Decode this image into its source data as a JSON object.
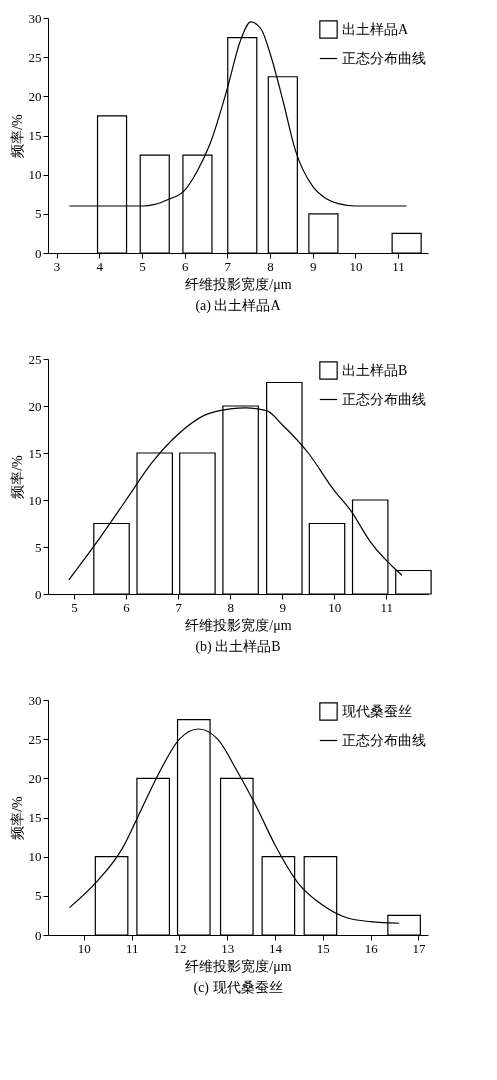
{
  "chart_data": [
    {
      "type": "bar",
      "xlabel": "纤维投影宽度/μm",
      "ylabel": "频率/%",
      "annotations": [
        "(a)  出土样品A"
      ],
      "xlim": [
        2.8,
        11.7
      ],
      "xticks": [
        3,
        4,
        5,
        6,
        7,
        8,
        9,
        10,
        11
      ],
      "ylim": [
        0,
        30
      ],
      "yticks": [
        0,
        5,
        10,
        15,
        20,
        25,
        30
      ],
      "legend": "top right",
      "grid": false,
      "series": [
        {
          "name": "出土样品A",
          "color": "#ffffff",
          "x": [
            4.3,
            5.3,
            6.3,
            7.35,
            8.3,
            9.25,
            11.2
          ],
          "values": [
            17.5,
            12.5,
            12.5,
            27.5,
            22.5,
            5,
            2.5
          ]
        },
        {
          "name": "正态分布曲线",
          "type": "line",
          "color": "#000000",
          "x": [
            3.3,
            4,
            4.5,
            5,
            5.3,
            5.6,
            6,
            6.3,
            6.6,
            7,
            7.3,
            7.55,
            7.8,
            8,
            8.3,
            8.6,
            9,
            9.3,
            9.6,
            10,
            10.5,
            11.2
          ],
          "values": [
            6,
            6,
            6,
            6,
            6.2,
            6.8,
            8,
            10.5,
            14,
            21,
            27,
            29.5,
            28.5,
            25.5,
            19.5,
            13,
            8.5,
            7,
            6.3,
            6,
            6,
            6
          ]
        }
      ]
    },
    {
      "type": "bar",
      "xlabel": "纤维投影宽度/μm",
      "ylabel": "频率/%",
      "annotations": [
        "(b) 出土样品B"
      ],
      "xlim": [
        4.5,
        11.8
      ],
      "xticks": [
        5,
        6,
        7,
        8,
        9,
        10,
        11
      ],
      "ylim": [
        0,
        25
      ],
      "yticks": [
        0,
        5,
        10,
        15,
        20,
        25
      ],
      "legend": "top right",
      "grid": false,
      "series": [
        {
          "name": "出土样品B",
          "color": "#ffffff",
          "x": [
            5.72,
            6.55,
            7.37,
            8.2,
            9.04,
            9.86,
            10.69,
            11.52
          ],
          "values": [
            7.5,
            15,
            15,
            20,
            22.5,
            7.5,
            10,
            2.5
          ]
        },
        {
          "name": "正态分布曲线",
          "type": "line",
          "color": "#000000",
          "x": [
            4.9,
            5.5,
            6,
            6.5,
            7,
            7.5,
            8,
            8.3,
            8.7,
            9,
            9.5,
            10,
            10.3,
            10.7,
            11.3
          ],
          "values": [
            1.5,
            6,
            10,
            14,
            17,
            19,
            19.7,
            19.8,
            19.5,
            18,
            15,
            11,
            9,
            5.5,
            2
          ]
        }
      ]
    },
    {
      "type": "bar",
      "xlabel": "纤维投影宽度/μm",
      "ylabel": "频率/%",
      "annotations": [
        "(c) 现代桑蚕丝"
      ],
      "xlim": [
        9.25,
        17.2
      ],
      "xticks": [
        10,
        11,
        12,
        13,
        14,
        15,
        16,
        17
      ],
      "ylim": [
        0,
        30
      ],
      "yticks": [
        0,
        5,
        10,
        15,
        20,
        25,
        30
      ],
      "legend": "top right",
      "grid": false,
      "series": [
        {
          "name": "现代桑蚕丝",
          "color": "#ffffff",
          "x": [
            10.58,
            11.45,
            12.3,
            13.2,
            14.07,
            14.95,
            16.7
          ],
          "values": [
            10,
            20,
            27.5,
            20,
            10,
            10,
            2.5
          ]
        },
        {
          "name": "正态分布曲线",
          "type": "line",
          "color": "#000000",
          "x": [
            9.7,
            10.3,
            10.8,
            11.2,
            11.6,
            12,
            12.4,
            12.8,
            13.2,
            13.6,
            14,
            14.5,
            15,
            15.5,
            16,
            16.6
          ],
          "values": [
            3.5,
            7,
            11,
            16,
            21,
            25,
            26.3,
            25,
            21,
            16.5,
            11.5,
            6.5,
            3.8,
            2.2,
            1.7,
            1.5
          ]
        }
      ]
    }
  ]
}
